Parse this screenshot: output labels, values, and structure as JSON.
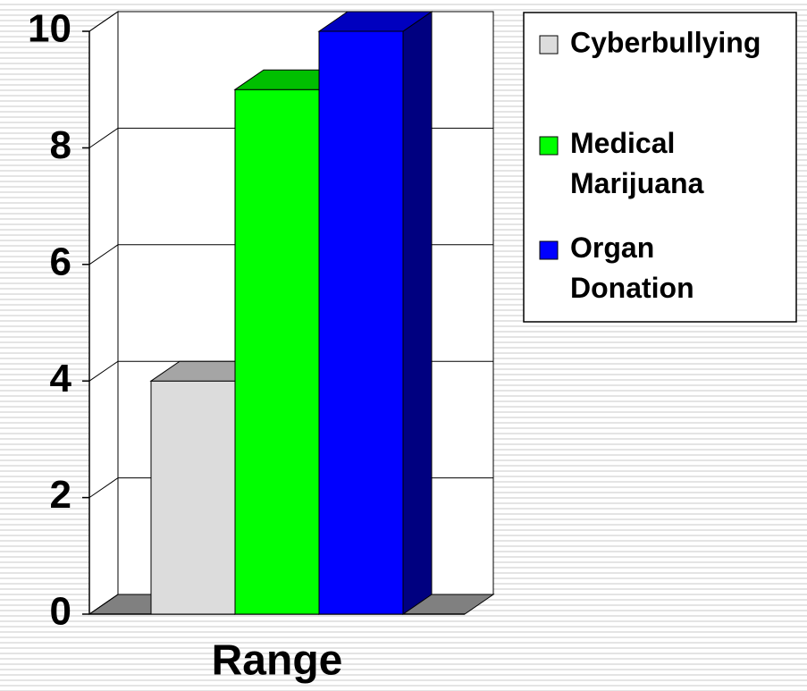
{
  "chart_data": {
    "type": "bar3d",
    "categories": [
      "Range"
    ],
    "series": [
      {
        "name": "Cyberbullying",
        "color": "#dcdcdc",
        "values": [
          4
        ]
      },
      {
        "name": "Medical Marijuana",
        "color": "#00ff00",
        "values": [
          9
        ]
      },
      {
        "name": "Organ Donation",
        "color": "#0000ff",
        "values": [
          10
        ]
      }
    ],
    "ylim": [
      0,
      10
    ],
    "yticks": [
      0,
      2,
      4,
      6,
      8,
      10
    ],
    "grid": true,
    "legend": "right"
  }
}
